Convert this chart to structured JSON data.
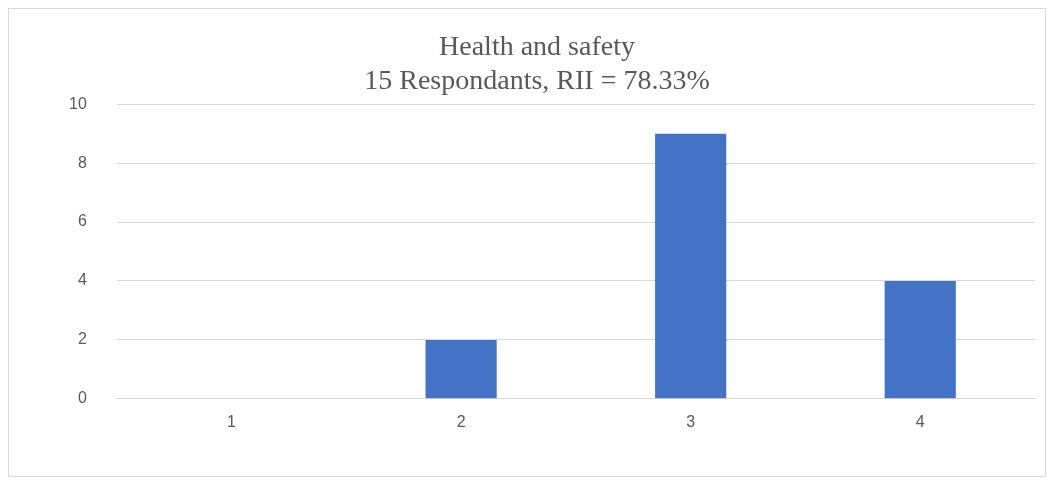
{
  "chart_data": {
    "type": "bar",
    "title": "Health and safety",
    "subtitle": "15 Respondants, RII = 78.33%",
    "categories": [
      "1",
      "2",
      "3",
      "4"
    ],
    "values": [
      0,
      2,
      9,
      4
    ],
    "color": "#4472c4",
    "ylim": [
      0,
      10
    ],
    "yticks": [
      0,
      2,
      4,
      6,
      8,
      10
    ],
    "grid": "y",
    "legend": false
  }
}
